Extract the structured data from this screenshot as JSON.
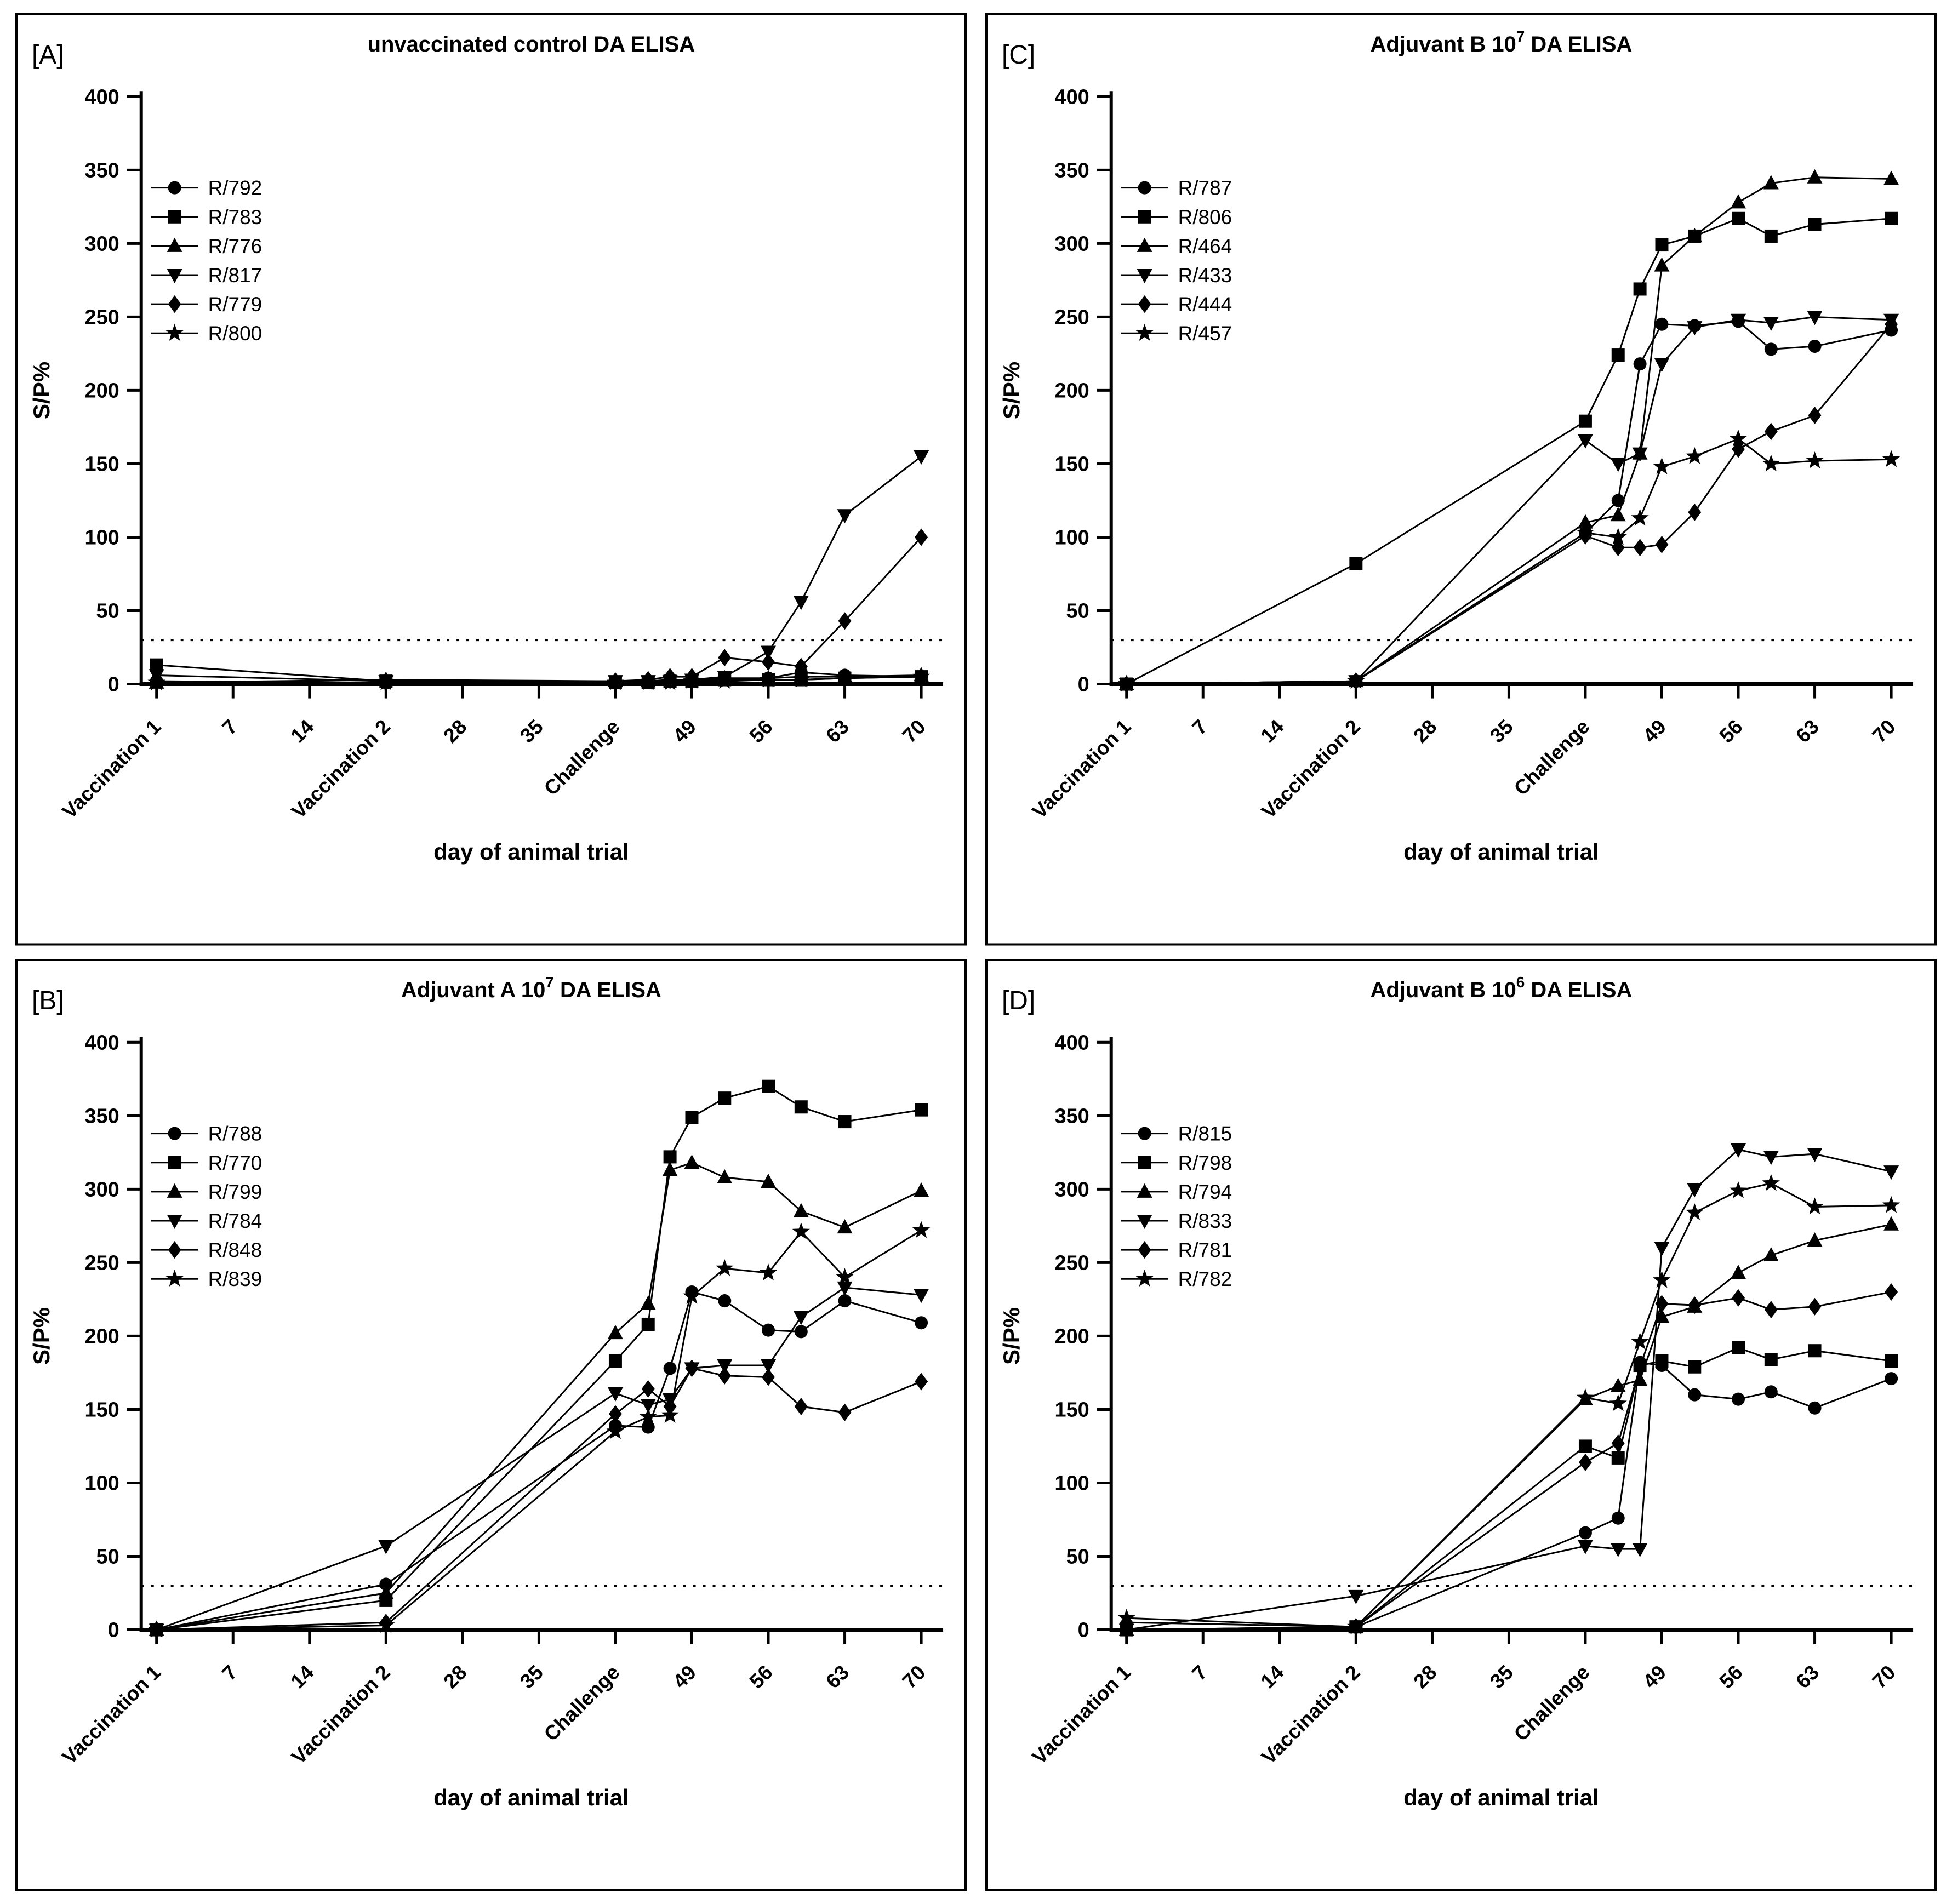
{
  "page": {
    "background": "#ffffff",
    "ink": "#000000",
    "figure_type": "four-panel ELISA line charts"
  },
  "chart_data": [
    {
      "id": "A",
      "corner_label": "[A]",
      "type": "line",
      "title_pre": "unvaccinated control DA ELISA",
      "title_sup": "",
      "title_post": "",
      "xlabel": "day of animal trial",
      "ylabel": "S/P%",
      "ylim": [
        0,
        400
      ],
      "yticks": [
        0,
        50,
        100,
        150,
        200,
        250,
        300,
        350,
        400
      ],
      "xtick_days": [
        0,
        7,
        14,
        21,
        28,
        35,
        42,
        49,
        56,
        63,
        70
      ],
      "xtick_labels": [
        "Vaccination 1",
        "7",
        "14",
        "Vaccination 2",
        "28",
        "35",
        "Challenge",
        "49",
        "56",
        "63",
        "70"
      ],
      "cutoff_line": 30,
      "grid": "off",
      "legend_position": "inside-left",
      "sample_days": [
        0,
        21,
        42,
        45,
        47,
        49,
        52,
        56,
        59,
        63,
        70
      ],
      "series": [
        {
          "name": "R/792",
          "marker": "circle",
          "y": [
            2,
            1,
            1,
            2,
            2,
            2,
            3,
            4,
            8,
            6,
            5
          ]
        },
        {
          "name": "R/783",
          "marker": "square",
          "y": [
            13,
            2,
            1,
            1,
            2,
            2,
            3,
            3,
            3,
            4,
            5
          ]
        },
        {
          "name": "R/776",
          "marker": "triangle-up",
          "y": [
            1,
            3,
            2,
            2,
            3,
            3,
            4,
            4,
            5,
            5,
            6
          ]
        },
        {
          "name": "R/817",
          "marker": "triangle-down",
          "y": [
            6,
            2,
            2,
            2,
            2,
            3,
            5,
            22,
            56,
            115,
            155
          ]
        },
        {
          "name": "R/779",
          "marker": "diamond",
          "y": [
            2,
            1,
            2,
            3,
            5,
            5,
            18,
            15,
            12,
            43,
            100
          ]
        },
        {
          "name": "R/800",
          "marker": "star",
          "y": [
            1,
            1,
            1,
            1,
            1,
            2,
            2,
            3,
            3,
            4,
            5
          ]
        }
      ]
    },
    {
      "id": "C",
      "corner_label": "[C]",
      "type": "line",
      "title_pre": "Adjuvant  B 10",
      "title_sup": "7",
      "title_post": " DA ELISA",
      "xlabel": "day of animal trial",
      "ylabel": "S/P%",
      "ylim": [
        0,
        400
      ],
      "yticks": [
        0,
        50,
        100,
        150,
        200,
        250,
        300,
        350,
        400
      ],
      "xtick_days": [
        0,
        7,
        14,
        21,
        28,
        35,
        42,
        49,
        56,
        63,
        70
      ],
      "xtick_labels": [
        "Vaccination 1",
        "7",
        "14",
        "Vaccination 2",
        "28",
        "35",
        "Challenge",
        "49",
        "56",
        "63",
        "70"
      ],
      "cutoff_line": 30,
      "grid": "off",
      "legend_position": "inside-left",
      "sample_days": [
        0,
        21,
        42,
        45,
        47,
        49,
        52,
        56,
        59,
        63,
        70
      ],
      "series": [
        {
          "name": "R/787",
          "marker": "circle",
          "y": [
            0,
            2,
            103,
            125,
            218,
            245,
            244,
            247,
            228,
            230,
            241
          ]
        },
        {
          "name": "R/806",
          "marker": "square",
          "y": [
            0,
            82,
            179,
            224,
            269,
            299,
            305,
            317,
            305,
            313,
            317
          ]
        },
        {
          "name": "R/464",
          "marker": "triangle-up",
          "y": [
            0,
            2,
            110,
            115,
            157,
            285,
            305,
            328,
            341,
            345,
            344
          ]
        },
        {
          "name": "R/433",
          "marker": "triangle-down",
          "y": [
            0,
            2,
            166,
            150,
            157,
            218,
            243,
            248,
            246,
            250,
            248
          ]
        },
        {
          "name": "R/444",
          "marker": "diamond",
          "y": [
            0,
            2,
            101,
            93,
            93,
            95,
            117,
            160,
            172,
            183,
            245
          ]
        },
        {
          "name": "R/457",
          "marker": "star",
          "y": [
            0,
            2,
            103,
            100,
            113,
            148,
            155,
            167,
            150,
            152,
            153
          ]
        }
      ]
    },
    {
      "id": "B",
      "corner_label": "[B]",
      "type": "line",
      "title_pre": "Adjuvant  A 10",
      "title_sup": "7",
      "title_post": " DA ELISA",
      "xlabel": "day of animal trial",
      "ylabel": "S/P%",
      "ylim": [
        0,
        400
      ],
      "yticks": [
        0,
        50,
        100,
        150,
        200,
        250,
        300,
        350,
        400
      ],
      "xtick_days": [
        0,
        7,
        14,
        21,
        28,
        35,
        42,
        49,
        56,
        63,
        70
      ],
      "xtick_labels": [
        "Vaccination 1",
        "7",
        "14",
        "Vaccination 2",
        "28",
        "35",
        "Challenge",
        "49",
        "56",
        "63",
        "70"
      ],
      "cutoff_line": 30,
      "grid": "off",
      "legend_position": "inside-left",
      "sample_days": [
        0,
        21,
        42,
        45,
        47,
        49,
        52,
        56,
        59,
        63,
        70
      ],
      "series": [
        {
          "name": "R/788",
          "marker": "circle",
          "y": [
            0,
            31,
            139,
            138,
            178,
            230,
            224,
            204,
            203,
            224,
            209
          ]
        },
        {
          "name": "R/770",
          "marker": "square",
          "y": [
            0,
            20,
            183,
            208,
            322,
            349,
            362,
            370,
            356,
            346,
            354
          ]
        },
        {
          "name": "R/799",
          "marker": "triangle-up",
          "y": [
            0,
            25,
            202,
            222,
            313,
            318,
            308,
            305,
            285,
            274,
            299
          ]
        },
        {
          "name": "R/784",
          "marker": "triangle-down",
          "y": [
            0,
            57,
            161,
            153,
            157,
            178,
            180,
            180,
            213,
            233,
            228
          ]
        },
        {
          "name": "R/848",
          "marker": "diamond",
          "y": [
            0,
            5,
            147,
            164,
            152,
            178,
            173,
            172,
            152,
            148,
            169
          ]
        },
        {
          "name": "R/839",
          "marker": "star",
          "y": [
            0,
            3,
            135,
            145,
            146,
            227,
            246,
            243,
            271,
            240,
            272
          ]
        }
      ]
    },
    {
      "id": "D",
      "corner_label": "[D]",
      "type": "line",
      "title_pre": "Adjuvant  B 10",
      "title_sup": "6",
      "title_post": " DA ELISA",
      "xlabel": "day of animal trial",
      "ylabel": "S/P%",
      "ylim": [
        0,
        400
      ],
      "yticks": [
        0,
        50,
        100,
        150,
        200,
        250,
        300,
        350,
        400
      ],
      "xtick_days": [
        0,
        7,
        14,
        21,
        28,
        35,
        42,
        49,
        56,
        63,
        70
      ],
      "xtick_labels": [
        "Vaccination 1",
        "7",
        "14",
        "Vaccination 2",
        "28",
        "35",
        "Challenge",
        "49",
        "56",
        "63",
        "70"
      ],
      "cutoff_line": 30,
      "grid": "off",
      "legend_position": "inside-left",
      "sample_days": [
        0,
        21,
        42,
        45,
        47,
        49,
        52,
        56,
        59,
        63,
        70
      ],
      "series": [
        {
          "name": "R/815",
          "marker": "circle",
          "y": [
            0,
            2,
            66,
            76,
            182,
            180,
            160,
            157,
            162,
            151,
            171
          ]
        },
        {
          "name": "R/798",
          "marker": "square",
          "y": [
            0,
            2,
            125,
            117,
            180,
            183,
            179,
            192,
            184,
            190,
            183
          ]
        },
        {
          "name": "R/794",
          "marker": "triangle-up",
          "y": [
            0,
            2,
            157,
            166,
            170,
            213,
            220,
            243,
            255,
            265,
            276
          ]
        },
        {
          "name": "R/833",
          "marker": "triangle-down",
          "y": [
            0,
            23,
            57,
            55,
            55,
            260,
            300,
            327,
            322,
            324,
            312
          ]
        },
        {
          "name": "R/781",
          "marker": "diamond",
          "y": [
            5,
            2,
            114,
            127,
            179,
            222,
            221,
            226,
            218,
            220,
            230
          ]
        },
        {
          "name": "R/782",
          "marker": "star",
          "y": [
            8,
            2,
            158,
            154,
            196,
            238,
            284,
            299,
            304,
            288,
            289
          ]
        }
      ]
    }
  ]
}
